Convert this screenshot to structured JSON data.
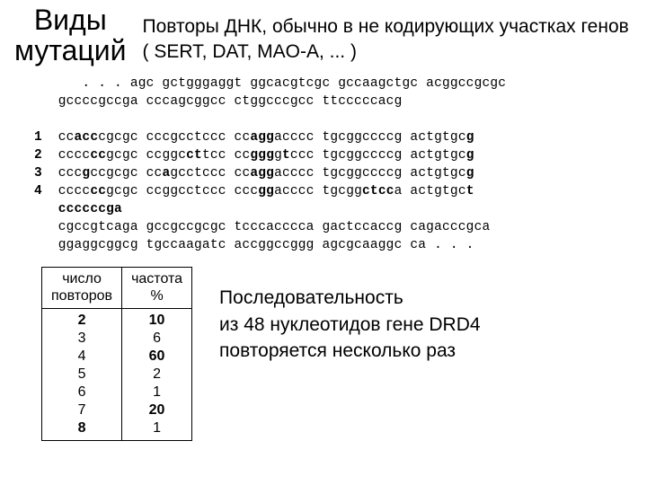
{
  "title_left_line1": "Виды",
  "title_left_line2": "мутаций",
  "title_right": "Повторы ДНК, обычно в не кодирующих участках генов ( SERT, DAT, MAO-A, ... )",
  "seq": {
    "row_labels": [
      "1",
      "2",
      "3",
      "4"
    ],
    "lines": [
      "   . . . agc gctgggaggt ggcacgtcgc gccaagctgc acggccgcgc",
      "gccccgccga cccagcggcc ctggcccgcc ttcccccacg",
      "",
      "cc<b>acc</b>cgcgc cccgcctccc cc<b>agg</b>acccc tgcggccccg actgtgc<b>g</b>",
      "cccc<b>cc</b>gcgc ccggc<b>ct</b>tcc cc<b>ggg</b>g<b>t</b>ccc tgcggccccg actgtgc<b>g</b>",
      "ccc<b>g</b>ccgcgc cc<b>a</b>gcctccc cc<b>agg</b>acccc tgcggccccg actgtgc<b>g</b>",
      "cccc<b>cc</b>gcgc ccggcctccc ccc<b>gg</b>acccc tgcgg<b>ctcc</b>a actgtgc<b>t</b>",
      "<b>ccccccga</b>",
      "cgccgtcaga gccgccgcgc tcccacccca gactccaccg cagacccgca",
      "ggaggcggcg tgccaagatc accggccggg agcgcaaggc ca . . ."
    ]
  },
  "table": {
    "head1_line1": "число",
    "head1_line2": "повторов",
    "head2_line1": "частота",
    "head2_line2": "%",
    "repeats": [
      "2",
      "3",
      "4",
      "5",
      "6",
      "7",
      "8"
    ],
    "freqs": [
      "10",
      "6",
      "60",
      "2",
      "1",
      "20",
      "1"
    ],
    "bold_repeats": [
      0,
      6
    ],
    "bold_freqs": [
      0,
      2,
      5
    ]
  },
  "desc_line1": "Последовательность",
  "desc_line2": "из 48 нуклеотидов гене DRD4",
  "desc_line3": "повторяется несколько раз"
}
